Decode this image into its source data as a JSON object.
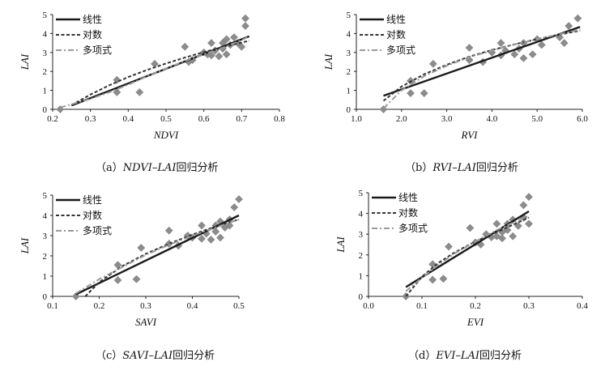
{
  "legend": [
    "线性",
    "对数",
    "多项式"
  ],
  "colors": {
    "linear": "#1a1a1a",
    "log": "#333333",
    "poly": "#9a9a9a",
    "marker": "#8c8c8c"
  },
  "chart_data": [
    {
      "type": "scatter",
      "panel_id": "a",
      "xlabel": "NDVI",
      "ylabel": "LAI",
      "xlim": [
        0.2,
        0.8
      ],
      "ylim": [
        0,
        5
      ],
      "xticks": [
        "0.2",
        "0.3",
        "0.4",
        "0.5",
        "0.6",
        "0.7",
        "0.8"
      ],
      "yticks": [
        "0",
        "1",
        "2",
        "3",
        "4",
        "5"
      ],
      "caption": {
        "prefix": "（a）",
        "index": "NDVI",
        "dash": "–",
        "lai": "LAI",
        "suffix": "回归分析"
      },
      "points": [
        [
          0.22,
          0.0
        ],
        [
          0.37,
          0.9
        ],
        [
          0.37,
          1.55
        ],
        [
          0.43,
          0.9
        ],
        [
          0.47,
          2.4
        ],
        [
          0.55,
          3.3
        ],
        [
          0.56,
          2.5
        ],
        [
          0.57,
          2.6
        ],
        [
          0.6,
          3.0
        ],
        [
          0.61,
          2.9
        ],
        [
          0.62,
          3.5
        ],
        [
          0.62,
          2.85
        ],
        [
          0.63,
          3.1
        ],
        [
          0.64,
          2.8
        ],
        [
          0.65,
          3.2
        ],
        [
          0.65,
          3.5
        ],
        [
          0.66,
          2.9
        ],
        [
          0.66,
          3.7
        ],
        [
          0.67,
          3.4
        ],
        [
          0.68,
          3.8
        ],
        [
          0.69,
          3.5
        ],
        [
          0.7,
          3.3
        ],
        [
          0.71,
          4.4
        ],
        [
          0.71,
          4.8
        ]
      ],
      "series": [
        {
          "name": "线性",
          "x": [
            0.25,
            0.72
          ],
          "y": [
            0.2,
            3.85
          ]
        },
        {
          "name": "对数",
          "x": [
            0.25,
            0.3,
            0.35,
            0.4,
            0.45,
            0.5,
            0.55,
            0.6,
            0.65,
            0.7,
            0.72
          ],
          "y": [
            0.22,
            0.78,
            1.27,
            1.7,
            2.08,
            2.42,
            2.73,
            3.02,
            3.28,
            3.52,
            3.62
          ]
        },
        {
          "name": "多项式",
          "x": [
            0.22,
            0.3,
            0.35,
            0.4,
            0.45,
            0.5,
            0.55,
            0.6,
            0.65,
            0.7,
            0.72
          ],
          "y": [
            0.1,
            0.55,
            0.9,
            1.3,
            1.75,
            2.15,
            2.55,
            2.9,
            3.25,
            3.65,
            3.85
          ]
        }
      ]
    },
    {
      "type": "scatter",
      "panel_id": "b",
      "xlabel": "RVI",
      "ylabel": "LAI",
      "xlim": [
        1.0,
        6.0
      ],
      "ylim": [
        0,
        5
      ],
      "xticks": [
        "1.0",
        "2.0",
        "3.0",
        "4.0",
        "5.0",
        "6.0"
      ],
      "yticks": [
        "0",
        "1",
        "2",
        "3",
        "4",
        "5"
      ],
      "caption": {
        "prefix": "（b）",
        "index": "RVI",
        "dash": "–",
        "lai": "LAI",
        "suffix": "回归分析"
      },
      "points": [
        [
          1.6,
          0.0
        ],
        [
          2.2,
          1.5
        ],
        [
          2.2,
          0.85
        ],
        [
          2.5,
          0.85
        ],
        [
          2.7,
          2.4
        ],
        [
          3.5,
          3.25
        ],
        [
          3.5,
          2.6
        ],
        [
          3.8,
          2.5
        ],
        [
          4.0,
          3.0
        ],
        [
          4.2,
          2.85
        ],
        [
          4.2,
          3.5
        ],
        [
          4.3,
          3.1
        ],
        [
          4.5,
          2.9
        ],
        [
          4.6,
          3.2
        ],
        [
          4.7,
          2.7
        ],
        [
          4.7,
          3.5
        ],
        [
          4.9,
          2.9
        ],
        [
          5.0,
          3.7
        ],
        [
          5.1,
          3.4
        ],
        [
          5.5,
          3.8
        ],
        [
          5.6,
          3.5
        ],
        [
          5.7,
          4.4
        ],
        [
          5.9,
          4.8
        ]
      ],
      "series": [
        {
          "name": "线性",
          "x": [
            1.6,
            5.95
          ],
          "y": [
            0.72,
            4.35
          ]
        },
        {
          "name": "对数",
          "x": [
            1.6,
            2.0,
            2.5,
            3.0,
            3.5,
            4.0,
            4.5,
            5.0,
            5.5,
            5.95
          ],
          "y": [
            0.45,
            1.2,
            1.85,
            2.35,
            2.78,
            3.13,
            3.43,
            3.7,
            3.95,
            4.15
          ]
        },
        {
          "name": "多项式",
          "x": [
            1.6,
            2.0,
            2.5,
            3.0,
            3.5,
            4.0,
            4.5,
            5.0,
            5.5,
            5.95
          ],
          "y": [
            0.05,
            1.0,
            1.75,
            2.3,
            2.75,
            3.1,
            3.42,
            3.7,
            3.97,
            4.2
          ]
        }
      ]
    },
    {
      "type": "scatter",
      "panel_id": "c",
      "xlabel": "SAVI",
      "ylabel": "LAI",
      "xlim": [
        0.1,
        0.5
      ],
      "ylim": [
        0,
        5
      ],
      "xticks": [
        "0.1",
        "0.2",
        "0.3",
        "0.4",
        "0.5"
      ],
      "yticks": [
        "0",
        "1",
        "2",
        "3",
        "4",
        "5"
      ],
      "caption": {
        "prefix": "（c）",
        "index": "SAVI",
        "dash": "–",
        "lai": "LAI",
        "suffix": "回归分析"
      },
      "points": [
        [
          0.15,
          0.0
        ],
        [
          0.24,
          1.55
        ],
        [
          0.24,
          0.8
        ],
        [
          0.28,
          0.85
        ],
        [
          0.29,
          2.4
        ],
        [
          0.35,
          3.25
        ],
        [
          0.35,
          2.6
        ],
        [
          0.37,
          2.5
        ],
        [
          0.39,
          3.0
        ],
        [
          0.4,
          2.9
        ],
        [
          0.42,
          3.5
        ],
        [
          0.42,
          2.85
        ],
        [
          0.43,
          3.1
        ],
        [
          0.44,
          2.8
        ],
        [
          0.45,
          3.2
        ],
        [
          0.45,
          3.5
        ],
        [
          0.46,
          2.9
        ],
        [
          0.46,
          3.7
        ],
        [
          0.47,
          3.4
        ],
        [
          0.48,
          3.8
        ],
        [
          0.48,
          3.5
        ],
        [
          0.49,
          4.4
        ],
        [
          0.5,
          4.8
        ]
      ],
      "series": [
        {
          "name": "线性",
          "x": [
            0.15,
            0.5
          ],
          "y": [
            0.1,
            4.0
          ]
        },
        {
          "name": "对数",
          "x": [
            0.17,
            0.2,
            0.25,
            0.3,
            0.35,
            0.4,
            0.45,
            0.5
          ],
          "y": [
            0.0,
            0.7,
            1.5,
            2.1,
            2.6,
            3.05,
            3.45,
            3.8
          ]
        },
        {
          "name": "多项式",
          "x": [
            0.15,
            0.2,
            0.25,
            0.3,
            0.35,
            0.4,
            0.45,
            0.5
          ],
          "y": [
            0.15,
            0.85,
            1.45,
            2.05,
            2.55,
            3.0,
            3.4,
            3.8
          ]
        }
      ]
    },
    {
      "type": "scatter",
      "panel_id": "d",
      "xlabel": "EVI",
      "ylabel": "LAI",
      "xlim": [
        0.0,
        0.4
      ],
      "ylim": [
        0,
        5
      ],
      "xticks": [
        "0.0",
        "0.1",
        "0.2",
        "0.3",
        "0.4"
      ],
      "yticks": [
        "0",
        "1",
        "2",
        "3",
        "4",
        "5"
      ],
      "caption": {
        "prefix": "（d）",
        "index": "EVI",
        "dash": "–",
        "lai": "LAI",
        "suffix": "回归分析"
      },
      "points": [
        [
          0.07,
          0.0
        ],
        [
          0.12,
          1.55
        ],
        [
          0.12,
          0.8
        ],
        [
          0.14,
          0.85
        ],
        [
          0.15,
          2.4
        ],
        [
          0.19,
          3.3
        ],
        [
          0.2,
          2.6
        ],
        [
          0.21,
          2.5
        ],
        [
          0.22,
          3.0
        ],
        [
          0.23,
          2.85
        ],
        [
          0.24,
          3.5
        ],
        [
          0.24,
          2.9
        ],
        [
          0.25,
          3.1
        ],
        [
          0.25,
          2.8
        ],
        [
          0.26,
          3.2
        ],
        [
          0.26,
          3.5
        ],
        [
          0.27,
          2.9
        ],
        [
          0.27,
          3.7
        ],
        [
          0.28,
          3.4
        ],
        [
          0.29,
          3.8
        ],
        [
          0.29,
          4.4
        ],
        [
          0.3,
          3.5
        ],
        [
          0.3,
          4.8
        ]
      ],
      "series": [
        {
          "name": "线性",
          "x": [
            0.07,
            0.3
          ],
          "y": [
            0.45,
            4.1
          ]
        },
        {
          "name": "对数",
          "x": [
            0.07,
            0.1,
            0.13,
            0.16,
            0.2,
            0.24,
            0.27,
            0.3
          ],
          "y": [
            0.0,
            0.95,
            1.6,
            2.1,
            2.65,
            3.1,
            3.45,
            3.8
          ]
        },
        {
          "name": "多项式",
          "x": [
            0.07,
            0.1,
            0.13,
            0.16,
            0.2,
            0.24,
            0.27,
            0.3
          ],
          "y": [
            0.25,
            0.9,
            1.5,
            2.05,
            2.65,
            3.2,
            3.55,
            3.9
          ]
        }
      ]
    }
  ]
}
